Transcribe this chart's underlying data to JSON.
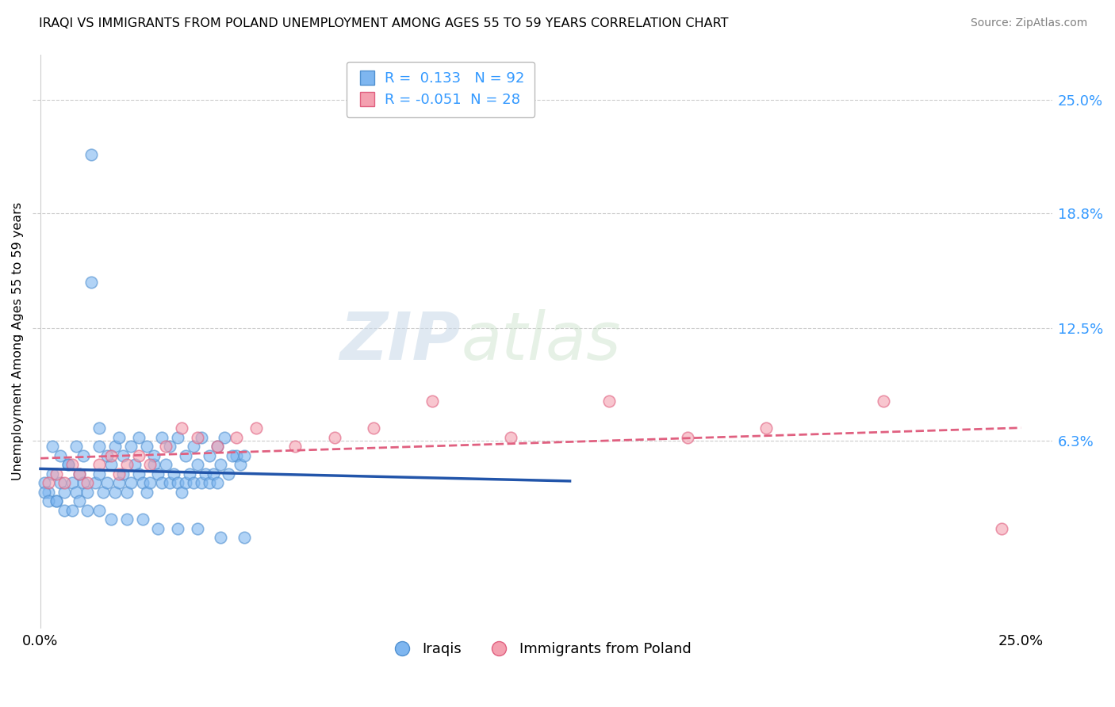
{
  "title": "IRAQI VS IMMIGRANTS FROM POLAND UNEMPLOYMENT AMONG AGES 55 TO 59 YEARS CORRELATION CHART",
  "source": "Source: ZipAtlas.com",
  "ylabel": "Unemployment Among Ages 55 to 59 years",
  "xlim": [
    -0.002,
    0.258
  ],
  "ylim": [
    -0.04,
    0.275
  ],
  "xtick_labels": [
    "0.0%",
    "25.0%"
  ],
  "xtick_vals": [
    0.0,
    0.25
  ],
  "ytick_labels": [
    "6.3%",
    "12.5%",
    "18.8%",
    "25.0%"
  ],
  "ytick_vals": [
    0.063,
    0.125,
    0.188,
    0.25
  ],
  "iraqi_color": "#7EB6F0",
  "poland_color": "#F4A0B0",
  "iraqi_edge_color": "#5090D0",
  "poland_edge_color": "#E06080",
  "iraqi_line_color": "#2255AA",
  "poland_line_color": "#E06080",
  "R_iraqi": 0.133,
  "N_iraqi": 92,
  "R_poland": -0.051,
  "N_poland": 28,
  "legend_label_iraqi": "Iraqis",
  "legend_label_poland": "Immigrants from Poland",
  "watermark_zip": "ZIP",
  "watermark_atlas": "atlas",
  "background_color": "#FFFFFF",
  "grid_color": "#CCCCCC",
  "iraqi_x": [
    0.001,
    0.002,
    0.003,
    0.004,
    0.005,
    0.006,
    0.007,
    0.008,
    0.009,
    0.01,
    0.011,
    0.012,
    0.013,
    0.014,
    0.015,
    0.016,
    0.017,
    0.018,
    0.019,
    0.02,
    0.021,
    0.022,
    0.023,
    0.024,
    0.025,
    0.026,
    0.027,
    0.028,
    0.029,
    0.03,
    0.031,
    0.032,
    0.033,
    0.034,
    0.035,
    0.036,
    0.037,
    0.038,
    0.039,
    0.04,
    0.041,
    0.042,
    0.043,
    0.044,
    0.045,
    0.046,
    0.048,
    0.05,
    0.051,
    0.052,
    0.003,
    0.005,
    0.007,
    0.009,
    0.011,
    0.013,
    0.015,
    0.017,
    0.019,
    0.021,
    0.023,
    0.025,
    0.027,
    0.029,
    0.031,
    0.033,
    0.035,
    0.037,
    0.039,
    0.041,
    0.043,
    0.045,
    0.047,
    0.049,
    0.001,
    0.002,
    0.004,
    0.006,
    0.008,
    0.01,
    0.012,
    0.015,
    0.018,
    0.022,
    0.026,
    0.03,
    0.035,
    0.04,
    0.046,
    0.052,
    0.015,
    0.02
  ],
  "iraqi_y": [
    0.04,
    0.035,
    0.045,
    0.03,
    0.04,
    0.035,
    0.05,
    0.04,
    0.035,
    0.045,
    0.04,
    0.035,
    0.22,
    0.04,
    0.045,
    0.035,
    0.04,
    0.05,
    0.035,
    0.04,
    0.045,
    0.035,
    0.04,
    0.05,
    0.045,
    0.04,
    0.035,
    0.04,
    0.05,
    0.045,
    0.04,
    0.05,
    0.04,
    0.045,
    0.04,
    0.035,
    0.04,
    0.045,
    0.04,
    0.05,
    0.04,
    0.045,
    0.04,
    0.045,
    0.04,
    0.05,
    0.045,
    0.055,
    0.05,
    0.055,
    0.06,
    0.055,
    0.05,
    0.06,
    0.055,
    0.15,
    0.06,
    0.055,
    0.06,
    0.055,
    0.06,
    0.065,
    0.06,
    0.055,
    0.065,
    0.06,
    0.065,
    0.055,
    0.06,
    0.065,
    0.055,
    0.06,
    0.065,
    0.055,
    0.035,
    0.03,
    0.03,
    0.025,
    0.025,
    0.03,
    0.025,
    0.025,
    0.02,
    0.02,
    0.02,
    0.015,
    0.015,
    0.015,
    0.01,
    0.01,
    0.07,
    0.065
  ],
  "poland_x": [
    0.002,
    0.004,
    0.006,
    0.008,
    0.01,
    0.012,
    0.015,
    0.018,
    0.02,
    0.022,
    0.025,
    0.028,
    0.032,
    0.036,
    0.04,
    0.045,
    0.05,
    0.055,
    0.065,
    0.075,
    0.085,
    0.1,
    0.12,
    0.145,
    0.165,
    0.185,
    0.215,
    0.245
  ],
  "poland_y": [
    0.04,
    0.045,
    0.04,
    0.05,
    0.045,
    0.04,
    0.05,
    0.055,
    0.045,
    0.05,
    0.055,
    0.05,
    0.06,
    0.07,
    0.065,
    0.06,
    0.065,
    0.07,
    0.06,
    0.065,
    0.07,
    0.085,
    0.065,
    0.085,
    0.065,
    0.07,
    0.085,
    0.015
  ]
}
